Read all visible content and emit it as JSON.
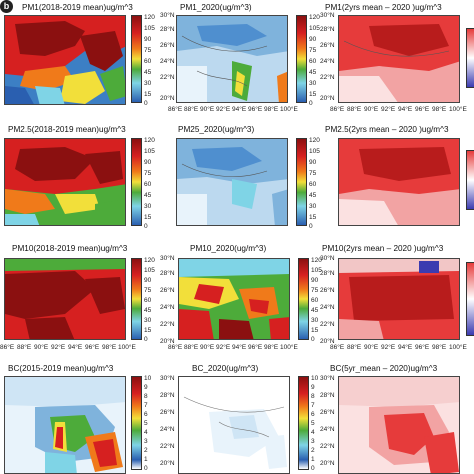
{
  "panel_letter": "b",
  "titles": {
    "r1c1": "PM1(2018-2019 mean)ug/m^3",
    "r1c2": "PM1_2020(ug/m^3)",
    "r1c3": "PM1(2yrs mean – 2020 )ug/m^3",
    "r2c1": "PM2.5(2018-2019 mean)ug/m^3",
    "r2c2": "PM25_2020(ug/m^3)",
    "r2c3": "PM2.5(2yrs mean – 2020 )ug/m^3",
    "r3c1": "PM10(2018-2019 mean)ug/m^3",
    "r3c2": "PM10_2020(ug/m^3)",
    "r3c3": "PM10(2yrs mean – 2020 )ug/m^3",
    "r4c1": "BC(2015-2019 mean)ug/m^3",
    "r4c2": "BC_2020(ug/m^3)",
    "r4c3": "BC(5yr_mean – 2020)ug/m^3"
  },
  "lat_labels_short": [
    "30°N",
    "28°N",
    "26°N",
    "24°N",
    "22°N",
    "20°N"
  ],
  "lat_labels_tall": [
    "30°N",
    "28°N",
    "26°N",
    "24°N",
    "22°N",
    "20°N"
  ],
  "lon_labels": [
    "86°E",
    "88°E",
    "90°E",
    "92°E",
    "94°E",
    "96°E",
    "98°E",
    "100°E"
  ],
  "cbar_ticks_pm": [
    "120",
    "105",
    "90",
    "75",
    "60",
    "45",
    "30",
    "15",
    "0"
  ],
  "cbar_ticks_bc": [
    "10",
    "9",
    "8",
    "7",
    "6",
    "5",
    "4",
    "3",
    "2",
    "1",
    "0"
  ],
  "colors": {
    "dark_red": "#8b1010",
    "red": "#d62020",
    "orange": "#f07a1a",
    "yellow": "#f2df3a",
    "green": "#4dab3a",
    "cyan": "#7fd4e6",
    "blue": "#2a5fb0",
    "white": "#ffffff",
    "diff_red": "#e63b3b",
    "diff_blue": "#3b3bb0"
  }
}
